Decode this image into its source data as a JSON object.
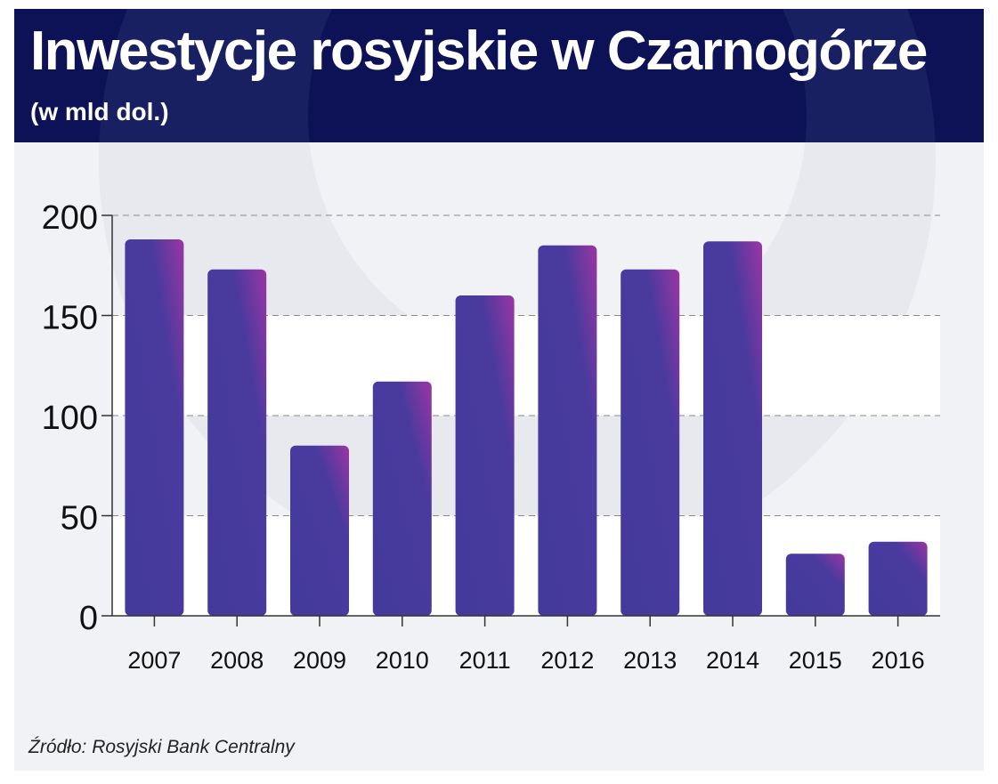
{
  "header": {
    "title": "Inwestycje rosyjskie w Czarnogórze",
    "subtitle": "(w mld dol.)"
  },
  "source": "Źródło: Rosyjski Bank Centralny",
  "colors": {
    "header_bg": "#0d1256",
    "panel_bg": "#f0f2f5",
    "bar_base": "#433a9c",
    "bar_accent": "#9a36a4"
  },
  "chart_data": {
    "type": "bar",
    "title": "Inwestycje rosyjskie w Czarnogórze",
    "subtitle": "(w mld dol.)",
    "categories": [
      "2007",
      "2008",
      "2009",
      "2010",
      "2011",
      "2012",
      "2013",
      "2014",
      "2015",
      "2016"
    ],
    "values": [
      188,
      173,
      85,
      117,
      160,
      185,
      173,
      187,
      31,
      37
    ],
    "ylim": [
      0,
      200
    ],
    "yticks": [
      0,
      50,
      100,
      150,
      200
    ],
    "xlabel": "",
    "ylabel": "",
    "grid": "horizontal dashed",
    "legend": "none"
  }
}
